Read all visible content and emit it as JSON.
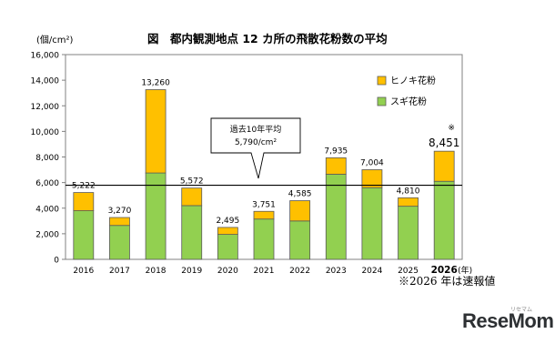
{
  "chart_data": {
    "type": "bar",
    "stacked": true,
    "title": "図　都内観測地点 12 カ所の飛散花粉数の平均",
    "ylabel": "(個/cm²)",
    "xlabel_suffix": "(年)",
    "ylim": [
      0,
      16000
    ],
    "yticks": [
      "0",
      "2,000",
      "4,000",
      "6,000",
      "8,000",
      "10,000",
      "12,000",
      "14,000",
      "16,000"
    ],
    "categories": [
      "2016",
      "2017",
      "2018",
      "2019",
      "2020",
      "2021",
      "2022",
      "2023",
      "2024",
      "2025",
      "2026"
    ],
    "series": [
      {
        "name": "スギ花粉",
        "color": "#92d050",
        "values": [
          3800,
          2650,
          6750,
          4200,
          1950,
          3150,
          3000,
          6650,
          5600,
          4150,
          6100
        ]
      },
      {
        "name": "ヒノキ花粉",
        "color": "#ffc000",
        "values": [
          1422,
          620,
          6510,
          1372,
          545,
          601,
          1585,
          1285,
          1404,
          660,
          2351
        ]
      }
    ],
    "totals": [
      "5,222",
      "3,270",
      "13,260",
      "5,572",
      "2,495",
      "3,751",
      "4,585",
      "7,935",
      "7,004",
      "4,810",
      "8,451"
    ],
    "average": {
      "value": 5790,
      "label_line1": "過去10年平均",
      "label_line2": "5,790/cm²"
    },
    "highlight_category": "2026",
    "highlight_mark": "※",
    "legend_position": "top-right",
    "grid": false
  },
  "footnote": "※2026 年は速報値",
  "logo": {
    "text": "ReseMom",
    "sub": "リセマム"
  }
}
